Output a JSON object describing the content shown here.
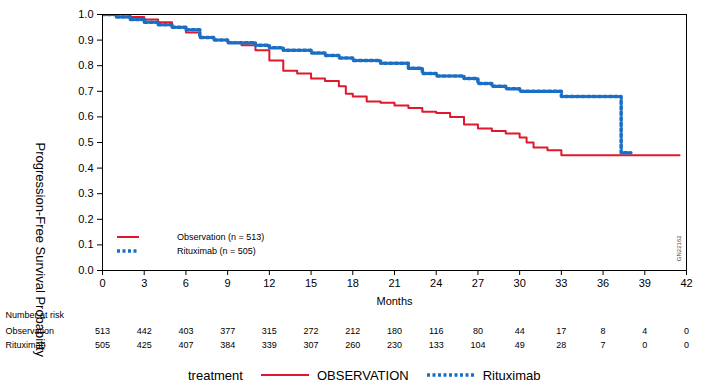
{
  "chart_data": {
    "type": "line",
    "xlabel": "Months",
    "ylabel": "Progression-Free Survival Probability",
    "xlim": [
      0,
      42
    ],
    "xticks": [
      0,
      3,
      6,
      9,
      12,
      15,
      18,
      21,
      24,
      27,
      30,
      33,
      36,
      39,
      42
    ],
    "ylim": [
      0,
      1
    ],
    "yticks": [
      {
        "value": 0,
        "label": "0.0"
      },
      0.1,
      0.2,
      0.3,
      0.4,
      0.5,
      0.6,
      0.7,
      0.8,
      0.9,
      {
        "value": 1,
        "label": "1.0"
      }
    ],
    "grid": false,
    "legend": "lower left",
    "series": [
      {
        "name": "Observation (n = 513)",
        "color": "#e0182d",
        "line_style": "solid",
        "x": [
          0,
          2,
          3,
          4,
          5,
          6,
          7,
          8,
          9,
          10,
          11,
          12,
          13,
          14,
          15,
          16,
          17,
          17.5,
          18,
          19,
          20,
          21,
          22,
          23,
          24,
          25,
          26,
          27,
          28,
          29,
          30,
          30.5,
          31,
          32,
          33,
          41.5
        ],
        "values": [
          1.0,
          0.99,
          0.98,
          0.97,
          0.95,
          0.93,
          0.91,
          0.9,
          0.89,
          0.88,
          0.86,
          0.82,
          0.78,
          0.77,
          0.75,
          0.74,
          0.72,
          0.69,
          0.68,
          0.66,
          0.655,
          0.645,
          0.635,
          0.62,
          0.615,
          0.6,
          0.57,
          0.555,
          0.545,
          0.535,
          0.52,
          0.5,
          0.48,
          0.47,
          0.45,
          0.45
        ]
      },
      {
        "name": "Rituximab (n = 505)",
        "color": "#1a6fc4",
        "line_style": "dotted",
        "x": [
          0,
          1,
          2,
          3,
          4,
          5,
          6,
          7,
          8,
          9,
          11,
          12,
          13,
          15,
          16,
          17,
          18,
          20,
          22,
          23,
          24,
          26,
          27,
          28,
          29,
          30,
          33,
          37.3,
          38
        ],
        "values": [
          1.0,
          0.99,
          0.98,
          0.97,
          0.96,
          0.95,
          0.94,
          0.91,
          0.9,
          0.89,
          0.88,
          0.87,
          0.86,
          0.85,
          0.84,
          0.83,
          0.82,
          0.81,
          0.79,
          0.77,
          0.76,
          0.75,
          0.73,
          0.72,
          0.71,
          0.7,
          0.68,
          0.46,
          0.46
        ]
      }
    ],
    "risk_table": {
      "title": "Number at risk",
      "times": [
        0,
        3,
        6,
        9,
        12,
        15,
        18,
        21,
        24,
        27,
        30,
        33,
        36,
        39,
        42
      ],
      "rows": [
        {
          "name": "Observation",
          "values": [
            513,
            442,
            403,
            377,
            315,
            272,
            212,
            180,
            116,
            80,
            44,
            17,
            8,
            4,
            0
          ]
        },
        {
          "name": "Rituximab",
          "values": [
            505,
            425,
            407,
            384,
            339,
            307,
            260,
            230,
            133,
            104,
            49,
            28,
            7,
            0,
            0
          ]
        }
      ]
    },
    "legend_title": "treatment",
    "legend_labels": [
      "OBSERVATION",
      "Rituximab"
    ],
    "annotations": [
      "GN22162"
    ]
  }
}
